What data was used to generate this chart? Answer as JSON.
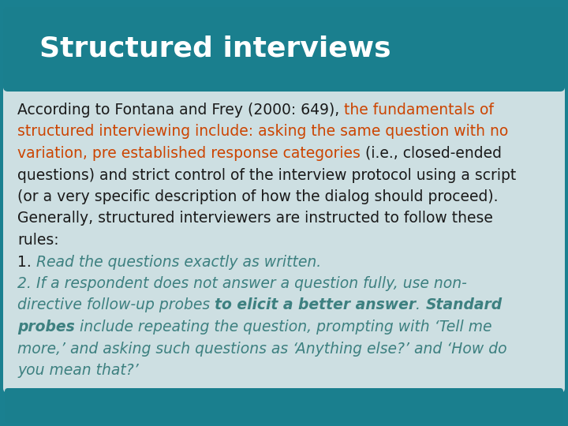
{
  "title": "Structured interviews",
  "title_bg_color": "#1a7f8e",
  "title_text_color": "#ffffff",
  "body_bg_color": "#cddfe2",
  "footer_bg_color": "#1a7f8e",
  "outer_bg_color": "#1a8090",
  "body_text_black": "#1a1a1a",
  "body_text_orange": "#cc4400",
  "body_text_teal": "#3d8080",
  "title_fontsize": 26,
  "body_fontsize": 13.5,
  "lines": [
    [
      {
        "text": "According to Fontana and Frey (2000: 649), ",
        "color": "#1a1a1a",
        "style": "normal",
        "weight": "normal"
      },
      {
        "text": "the fundamentals of",
        "color": "#cc4400",
        "style": "normal",
        "weight": "normal"
      }
    ],
    [
      {
        "text": "structured interviewing include: asking the same question with no",
        "color": "#cc4400",
        "style": "normal",
        "weight": "normal"
      }
    ],
    [
      {
        "text": "variation, pre established response categories ",
        "color": "#cc4400",
        "style": "normal",
        "weight": "normal"
      },
      {
        "text": "(i.e., closed-ended",
        "color": "#1a1a1a",
        "style": "normal",
        "weight": "normal"
      }
    ],
    [
      {
        "text": "questions) and strict control of the interview protocol using a script",
        "color": "#1a1a1a",
        "style": "normal",
        "weight": "normal"
      }
    ],
    [
      {
        "text": "(or a very specific description of how the dialog should proceed).",
        "color": "#1a1a1a",
        "style": "normal",
        "weight": "normal"
      }
    ],
    [
      {
        "text": "Generally, structured interviewers are instructed to follow these",
        "color": "#1a1a1a",
        "style": "normal",
        "weight": "normal"
      }
    ],
    [
      {
        "text": "rules:",
        "color": "#1a1a1a",
        "style": "normal",
        "weight": "normal"
      }
    ],
    [
      {
        "text": "1. ",
        "color": "#1a1a1a",
        "style": "normal",
        "weight": "normal"
      },
      {
        "text": "Read the questions exactly as written.",
        "color": "#3d8080",
        "style": "italic",
        "weight": "normal"
      }
    ],
    [
      {
        "text": "2. ",
        "color": "#3d8080",
        "style": "italic",
        "weight": "normal"
      },
      {
        "text": "If a respondent does not answer a question fully, use non-",
        "color": "#3d8080",
        "style": "italic",
        "weight": "normal"
      }
    ],
    [
      {
        "text": "directive follow-up probes ",
        "color": "#3d8080",
        "style": "italic",
        "weight": "normal"
      },
      {
        "text": "to elicit a better answer",
        "color": "#3d8080",
        "style": "italic",
        "weight": "bold"
      },
      {
        "text": ". ",
        "color": "#3d8080",
        "style": "italic",
        "weight": "normal"
      },
      {
        "text": "Standard",
        "color": "#3d8080",
        "style": "italic",
        "weight": "bold"
      }
    ],
    [
      {
        "text": "probes",
        "color": "#3d8080",
        "style": "italic",
        "weight": "bold"
      },
      {
        "text": " include repeating the question, prompting with ‘Tell me",
        "color": "#3d8080",
        "style": "italic",
        "weight": "normal"
      }
    ],
    [
      {
        "text": "more,’ and asking such questions as ‘Anything else?’ and ‘How do",
        "color": "#3d8080",
        "style": "italic",
        "weight": "normal"
      }
    ],
    [
      {
        "text": "you mean that?’",
        "color": "#3d8080",
        "style": "italic",
        "weight": "normal"
      }
    ]
  ]
}
